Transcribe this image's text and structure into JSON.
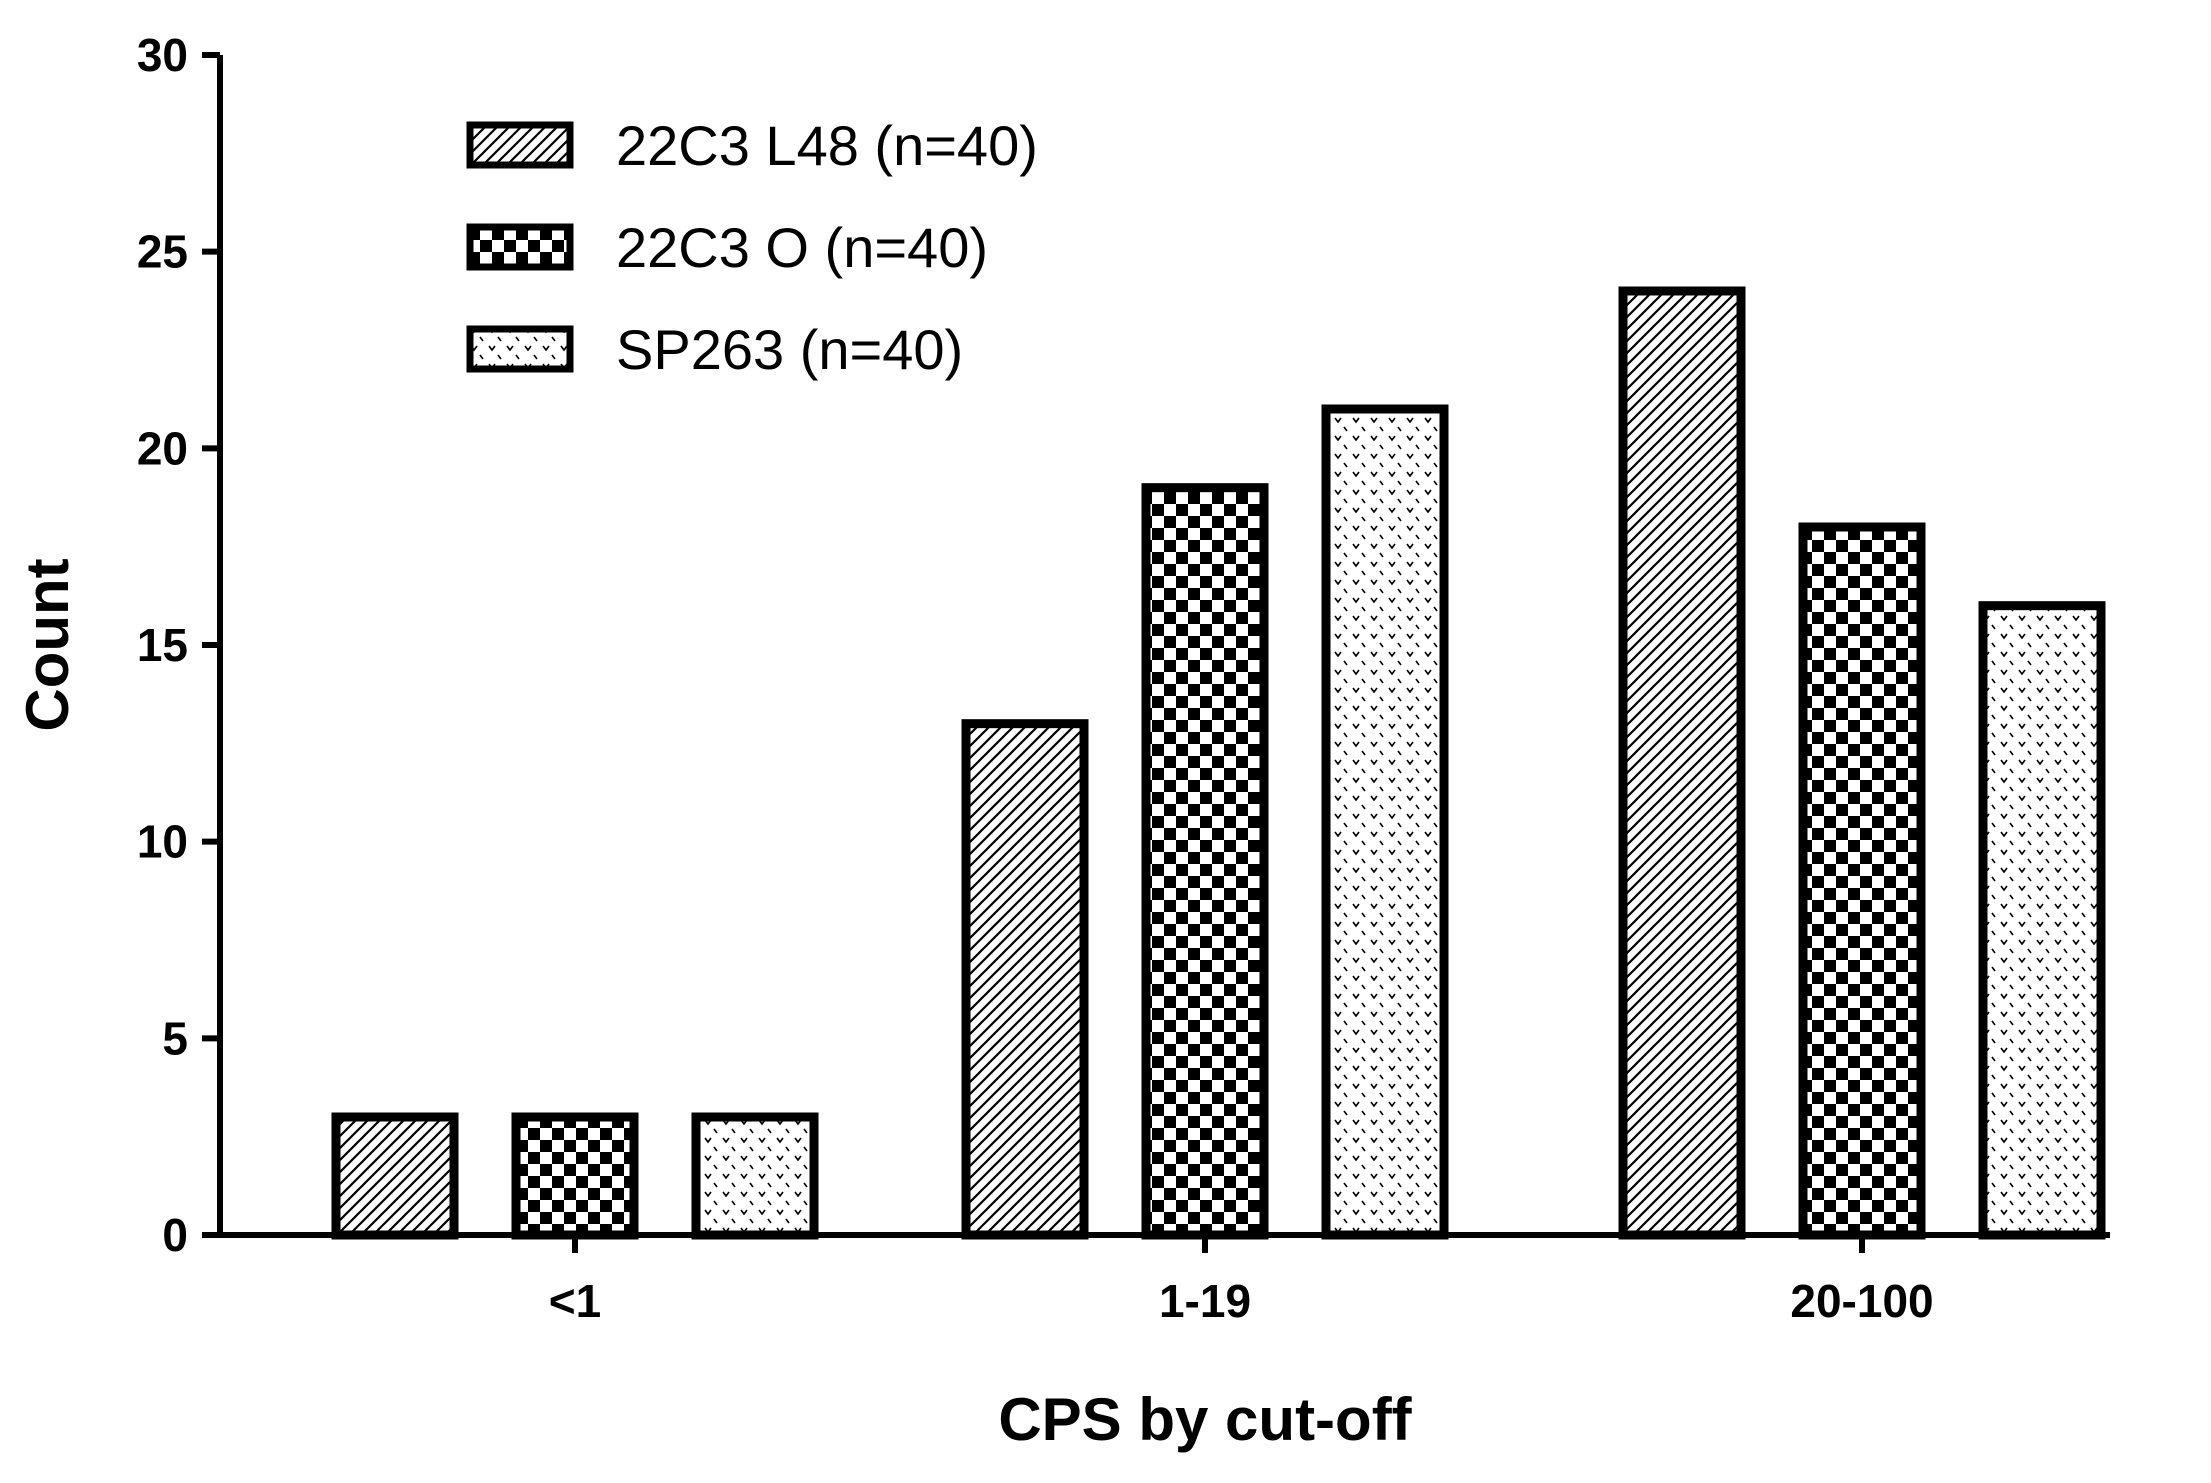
{
  "chart_data": {
    "type": "bar",
    "categories": [
      "<1",
      "1-19",
      "20-100"
    ],
    "series": [
      {
        "name": "22C3 L48 (n=40)",
        "values": [
          3,
          13,
          24
        ],
        "pattern": "diagonal-hatch"
      },
      {
        "name": "22C3 O (n=40)",
        "values": [
          3,
          19,
          18
        ],
        "pattern": "checkerboard"
      },
      {
        "name": "SP263 (n=40)",
        "values": [
          3,
          21,
          16
        ],
        "pattern": "dotted"
      }
    ],
    "title": "",
    "xlabel": "CPS by cut-off",
    "ylabel": "Count",
    "ylim": [
      0,
      30
    ],
    "yticks": [
      0,
      5,
      10,
      15,
      20,
      25,
      30
    ],
    "grid": false,
    "legend_position": "top-left",
    "colors": {
      "stroke": "#000000",
      "fill": "#ffffff",
      "pattern_ink": "#000000"
    }
  }
}
